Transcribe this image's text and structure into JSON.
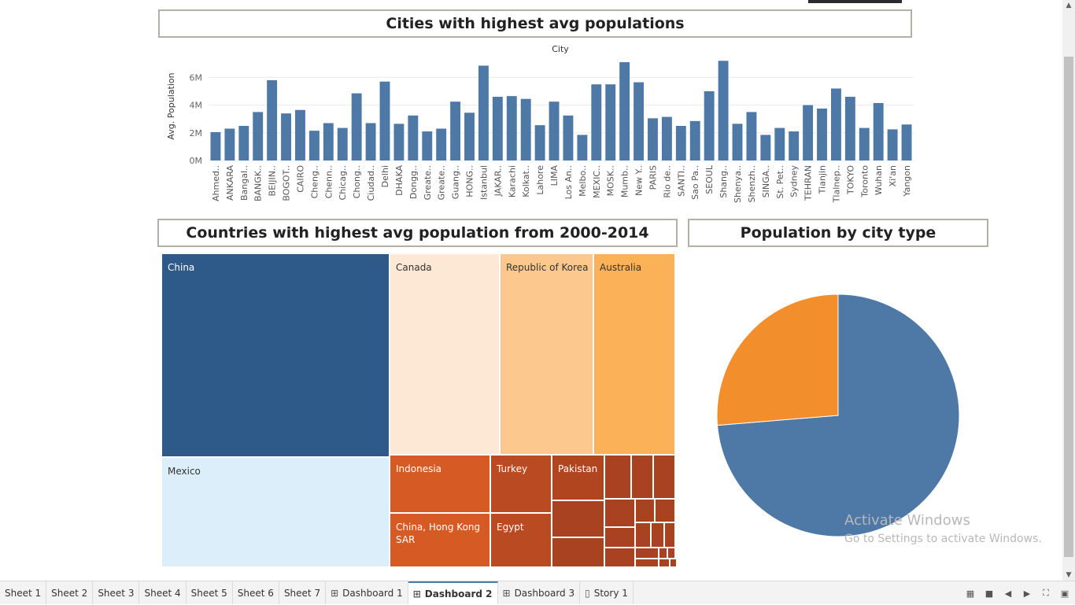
{
  "dashboard": {
    "bar_title": "Cities with highest avg populations",
    "treemap_title": "Countries with highest avg population from 2000-2014",
    "pie_title": "Population by city type"
  },
  "chart_data": [
    {
      "type": "bar",
      "title": "Cities with highest avg populations",
      "xlabel": "City",
      "ylabel": "Avg. Population",
      "y_ticks": [
        "0M",
        "2M",
        "4M",
        "6M"
      ],
      "ylim": [
        0,
        7500000
      ],
      "grid": true,
      "color": "#4e79a7",
      "categories": [
        "Ahmed..",
        "ANKARA",
        "Bangal..",
        "BANGK..",
        "BEIJIN..",
        "BOGOT..",
        "CAIRO",
        "Cheng..",
        "Chenn..",
        "Chicag..",
        "Chong..",
        "Ciudad..",
        "Delhi",
        "DHAKA",
        "Dongg..",
        "Greate..",
        "Greate..",
        "Guang..",
        "HONG..",
        "Istanbul",
        "JAKAR..",
        "Karachi",
        "Kolkat..",
        "Lahore",
        "LIMA",
        "Los An..",
        "Melbo..",
        "MEXIC..",
        "MOSK..",
        "Mumb..",
        "New Y..",
        "PARIS",
        "Rio de..",
        "SANTI..",
        "Sao Pa..",
        "SEOUL",
        "Shang..",
        "Shenya..",
        "Shenzh..",
        "SINGA..",
        "St. Pet..",
        "Sydney",
        "TEHRAN",
        "Tianjin",
        "Tlalnep..",
        "TOKYO",
        "Toronto",
        "Wuhan",
        "Xi'an",
        "Yangon"
      ],
      "values": [
        2050000,
        2300000,
        2500000,
        3500000,
        5800000,
        3400000,
        3650000,
        2150000,
        2700000,
        2350000,
        4850000,
        2700000,
        5700000,
        2650000,
        3250000,
        2100000,
        2300000,
        4250000,
        3450000,
        6850000,
        4600000,
        4650000,
        4450000,
        2550000,
        4250000,
        3250000,
        1850000,
        5500000,
        5500000,
        7100000,
        5650000,
        3050000,
        3150000,
        2500000,
        2850000,
        5000000,
        7200000,
        2650000,
        3500000,
        1850000,
        2350000,
        2100000,
        4000000,
        3750000,
        5200000,
        4600000,
        2350000,
        4150000,
        2250000,
        2600000
      ]
    },
    {
      "type": "treemap",
      "title": "Countries with highest avg population from 2000-2014",
      "items": [
        {
          "label": "China",
          "color": "#2e5a8a"
        },
        {
          "label": "Mexico",
          "color": "#dbeef9"
        },
        {
          "label": "Canada",
          "color": "#fde8d5"
        },
        {
          "label": "Republic of Korea",
          "color": "#fdc88d"
        },
        {
          "label": "Australia",
          "color": "#fbb157"
        },
        {
          "label": "Indonesia",
          "color": "#d55a24"
        },
        {
          "label": "Turkey",
          "color": "#b94a22"
        },
        {
          "label": "Pakistan",
          "color": "#b14520"
        },
        {
          "label": "China, Hong Kong SAR",
          "color": "#d55a24"
        },
        {
          "label": "Egypt",
          "color": "#b94a22"
        },
        {
          "label": "",
          "color": "#a84220"
        }
      ]
    },
    {
      "type": "pie",
      "title": "Population by city type",
      "slices": [
        {
          "value": 0.737,
          "color": "#4e79a7"
        },
        {
          "value": 0.263,
          "color": "#f28e2b"
        }
      ]
    }
  ],
  "tabs": [
    {
      "label": "Sheet 1",
      "icon": "",
      "active": false
    },
    {
      "label": "Sheet 2",
      "icon": "",
      "active": false
    },
    {
      "label": "Sheet 3",
      "icon": "",
      "active": false
    },
    {
      "label": "Sheet 4",
      "icon": "",
      "active": false
    },
    {
      "label": "Sheet 5",
      "icon": "",
      "active": false
    },
    {
      "label": "Sheet 6",
      "icon": "",
      "active": false
    },
    {
      "label": "Sheet 7",
      "icon": "",
      "active": false
    },
    {
      "label": "Dashboard 1",
      "icon": "dashboard-icon",
      "active": false
    },
    {
      "label": "Dashboard 2",
      "icon": "dashboard-icon",
      "active": true
    },
    {
      "label": "Dashboard 3",
      "icon": "dashboard-icon",
      "active": false
    },
    {
      "label": "Story 1",
      "icon": "story-icon",
      "active": false
    }
  ],
  "watermark": {
    "line1": "Activate Windows",
    "line2": "Go to Settings to activate Windows."
  }
}
